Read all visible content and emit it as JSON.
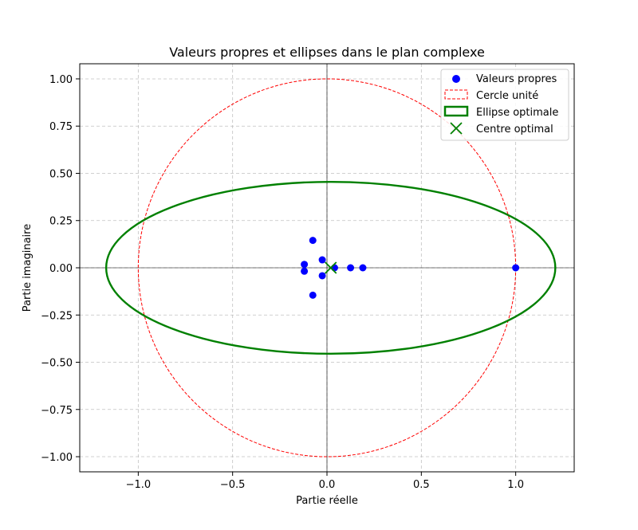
{
  "chart_data": {
    "type": "scatter",
    "title": "Valeurs propres et ellipses dans le plan complexe",
    "xlabel": "Partie réelle",
    "ylabel": "Partie imaginaire",
    "xlim": [
      -1.31,
      1.31
    ],
    "ylim": [
      -1.08,
      1.08
    ],
    "grid": true,
    "legend_position": "top-right",
    "xticks": [
      -1.0,
      -0.5,
      0.0,
      0.5,
      1.0
    ],
    "xtick_labels": [
      "−1.0",
      "−0.5",
      "0.0",
      "0.5",
      "1.0"
    ],
    "yticks": [
      1.0,
      0.75,
      0.5,
      0.25,
      0.0,
      -0.25,
      -0.5,
      -0.75,
      -1.0
    ],
    "ytick_labels": [
      "1.00",
      "0.75",
      "0.50",
      "0.25",
      "0.00",
      "−0.25",
      "−0.50",
      "−0.75",
      "−1.00"
    ],
    "series": [
      {
        "name": "Valeurs propres",
        "kind": "scatter",
        "color": "#0000ff",
        "points": [
          {
            "x": -0.075,
            "y": 0.145
          },
          {
            "x": -0.075,
            "y": -0.145
          },
          {
            "x": -0.12,
            "y": 0.018
          },
          {
            "x": -0.12,
            "y": -0.018
          },
          {
            "x": -0.025,
            "y": 0.042
          },
          {
            "x": -0.025,
            "y": -0.042
          },
          {
            "x": 0.04,
            "y": 0.0
          },
          {
            "x": 0.125,
            "y": 0.0
          },
          {
            "x": 0.19,
            "y": 0.0
          },
          {
            "x": 1.0,
            "y": 0.0
          }
        ]
      },
      {
        "name": "Cercle unité",
        "kind": "circle",
        "color": "#ff0000",
        "center": {
          "x": 0.0,
          "y": 0.0
        },
        "radius": 1.0
      },
      {
        "name": "Ellipse optimale",
        "kind": "ellipse",
        "color": "#008000",
        "center": {
          "x": 0.02,
          "y": 0.0
        },
        "rx": 1.19,
        "ry": 0.455
      },
      {
        "name": "Centre optimal",
        "kind": "marker-x",
        "color": "#008000",
        "point": {
          "x": 0.02,
          "y": 0.0
        }
      }
    ],
    "legend": {
      "entries": [
        "Valeurs propres",
        "Cercle unité",
        "Ellipse optimale",
        "Centre optimal"
      ]
    }
  }
}
